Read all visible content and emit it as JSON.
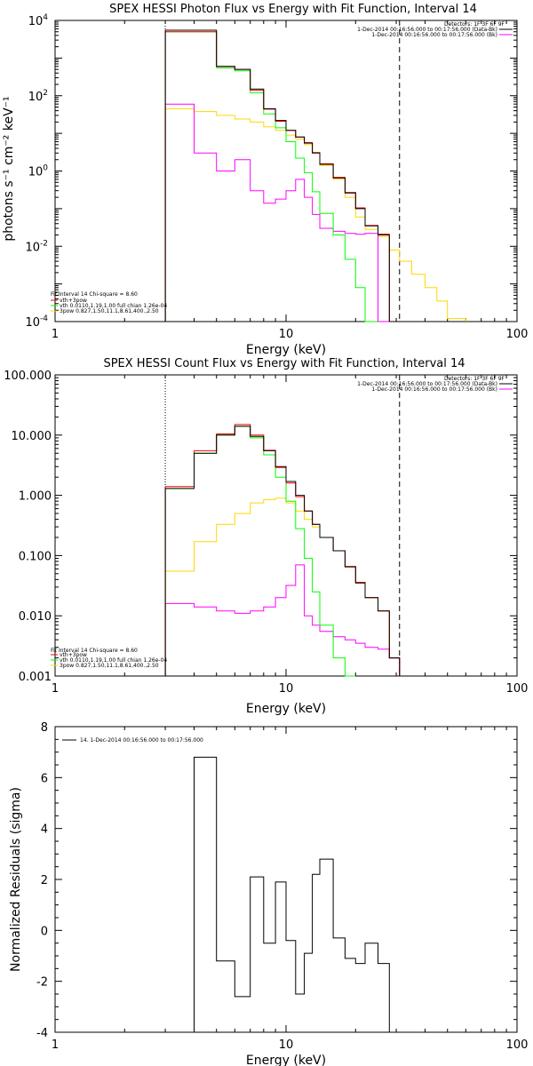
{
  "chart_data": [
    {
      "type": "line",
      "title": "SPEX HESSI Photon Flux vs Energy with Fit Function, Interval 14",
      "xlabel": "Energy (keV)",
      "ylabel": "photons s⁻¹ cm⁻² keV⁻¹",
      "xscale": "log",
      "yscale": "log",
      "xlim": [
        1,
        100
      ],
      "ylim": [
        0.0001,
        10000
      ],
      "x_ticks": [
        "1",
        "10",
        "100"
      ],
      "y_ticks": [
        {
          "b": "10",
          "e": "-4"
        },
        {
          "b": "10",
          "e": "-2"
        },
        {
          "b": "10",
          "e": "0"
        },
        {
          "b": "10",
          "e": "2"
        },
        {
          "b": "10",
          "e": "4"
        }
      ],
      "legend_header": "Detectors: 1F 3F 6F 9F",
      "legend_top": [
        {
          "label": "1-Dec-2014 00:16:56.000 to 00:17:56.000 (Data-Bk)",
          "color": "#000000"
        },
        {
          "label": "1-Dec-2014 00:16:56.000 to 00:17:56.000 (Bk)",
          "color": "#ff00ff"
        }
      ],
      "legend_bottom_header": "Fit Interval 14   Chi-square = 8.60",
      "legend_bottom": [
        {
          "label": "vth+3pow",
          "color": "#ff0000"
        },
        {
          "label": "vth 0.0110,1.19,1.00  full chian 1.26e-04",
          "color": "#00ff00"
        },
        {
          "label": "3pow 0.827,1.50,11.1,8.61,400.,2.50",
          "color": "#ffd700"
        }
      ],
      "edges": [
        3,
        4,
        5,
        6,
        7,
        8,
        9,
        10,
        11,
        12,
        13,
        14,
        16,
        18,
        20,
        22,
        25,
        28,
        31,
        35,
        40,
        45,
        50,
        60
      ],
      "series": [
        {
          "name": "Data-Bk",
          "color": "#000000",
          "values": [
            5500,
            5500,
            600,
            500,
            150,
            45,
            22,
            12,
            8,
            5.5,
            3,
            1.5,
            0.65,
            0.26,
            0.1,
            0.035,
            0.02
          ]
        },
        {
          "name": "vth+3pow",
          "color": "#ff0000",
          "values": [
            5000,
            5000,
            600,
            500,
            140,
            44,
            21,
            12,
            8,
            5.7,
            3.1,
            1.55,
            0.68,
            0.27,
            0.105,
            0.036,
            0.021
          ]
        },
        {
          "name": "vth",
          "color": "#00ff00",
          "values": [
            5000,
            5000,
            550,
            460,
            120,
            33,
            14,
            6,
            2.2,
            0.9,
            0.28,
            0.075,
            0.02,
            0.0045,
            0.0008,
            0.0001
          ]
        },
        {
          "name": "3pow",
          "color": "#ffd700",
          "values": [
            45,
            38,
            30,
            24,
            20,
            15,
            12,
            9,
            7,
            5,
            3.1,
            1.4,
            0.6,
            0.2,
            0.06,
            0.028,
            0.018,
            0.008,
            0.004,
            0.0018,
            0.0008,
            0.00035,
            0.00012
          ]
        },
        {
          "name": "Bk",
          "color": "#ff00ff",
          "values": [
            60,
            3,
            1,
            2,
            0.3,
            0.14,
            0.18,
            0.3,
            0.6,
            0.2,
            0.07,
            0.03,
            0.025,
            0.022,
            0.021,
            0.022,
            0.0001
          ]
        }
      ],
      "vlines": [
        {
          "x": 3,
          "style": "dotted"
        },
        {
          "x": 31,
          "style": "dashed"
        }
      ]
    },
    {
      "type": "line",
      "title": "SPEX HESSI Count Flux vs Energy with Fit Function, Interval 14",
      "xlabel": "Energy (keV)",
      "ylabel": "",
      "xscale": "log",
      "yscale": "log",
      "xlim": [
        1,
        100
      ],
      "ylim": [
        0.001,
        100
      ],
      "x_ticks": [
        "1",
        "10",
        "100"
      ],
      "y_ticks": [
        "0.001",
        "0.010",
        "0.100",
        "1.000",
        "10.000",
        "100.000"
      ],
      "legend_header": "Detectors: 1F 3F 6F 9F",
      "legend_top": [
        {
          "label": "1-Dec-2014 00:16:56.000 to 00:17:56.000 (Data-Bk)",
          "color": "#000000"
        },
        {
          "label": "1-Dec-2014 00:16:56.000 to 00:17:56.000 (Bk)",
          "color": "#ff00ff"
        }
      ],
      "legend_bottom_header": "Fit Interval 14   Chi-square = 8.60",
      "legend_bottom": [
        {
          "label": "vth+3pow",
          "color": "#ff0000"
        },
        {
          "label": "vth 0.0110,1.19,1.00  full chian 1.26e-04",
          "color": "#00ff00"
        },
        {
          "label": "3pow 0.827,1.50,11.1,8.61,400.,2.50",
          "color": "#ffd700"
        }
      ],
      "edges": [
        3,
        4,
        5,
        6,
        7,
        8,
        9,
        10,
        11,
        12,
        13,
        14,
        16,
        18,
        20,
        22,
        25,
        28,
        31
      ],
      "series": [
        {
          "name": "Data-Bk",
          "color": "#000000",
          "values": [
            1.3,
            5.0,
            10.0,
            14.0,
            9.5,
            5.5,
            3.0,
            1.7,
            1.0,
            0.55,
            0.33,
            0.2,
            0.12,
            0.065,
            0.035,
            0.02,
            0.012,
            0.002
          ]
        },
        {
          "name": "vth+3pow",
          "color": "#ff0000",
          "values": [
            1.4,
            5.5,
            10.5,
            15.0,
            10.0,
            5.6,
            2.9,
            1.6,
            0.95,
            0.55,
            0.33,
            0.2,
            0.12,
            0.066,
            0.036,
            0.02,
            0.012,
            0.002
          ]
        },
        {
          "name": "vth",
          "color": "#00ff00",
          "values": [
            1.3,
            5.0,
            10.0,
            14.0,
            9.0,
            4.7,
            2.0,
            0.8,
            0.28,
            0.09,
            0.025,
            0.007,
            0.002,
            0.001
          ]
        },
        {
          "name": "3pow",
          "color": "#ffd700",
          "values": [
            0.055,
            0.17,
            0.33,
            0.5,
            0.75,
            0.85,
            0.9,
            0.75,
            0.55,
            0.4,
            0.3,
            0.2,
            0.12,
            0.065,
            0.035,
            0.02,
            0.012,
            0.002
          ]
        },
        {
          "name": "Bk",
          "color": "#ff00ff",
          "values": [
            0.016,
            0.014,
            0.012,
            0.011,
            0.012,
            0.014,
            0.02,
            0.032,
            0.07,
            0.01,
            0.007,
            0.0055,
            0.0045,
            0.004,
            0.0035,
            0.003,
            0.0028,
            0.002
          ]
        }
      ],
      "vlines": [
        {
          "x": 3,
          "style": "dotted"
        },
        {
          "x": 31,
          "style": "dashed"
        }
      ]
    },
    {
      "type": "line",
      "title": "",
      "xlabel": "Energy (keV)",
      "ylabel": "Normalized Residuals (sigma)",
      "xscale": "log",
      "yscale": "linear",
      "xlim": [
        1,
        100
      ],
      "ylim": [
        -4,
        8
      ],
      "x_ticks": [
        "1",
        "10",
        "100"
      ],
      "y_ticks": [
        "-4",
        "-2",
        "0",
        "2",
        "4",
        "6",
        "8"
      ],
      "legend_top": [
        {
          "label": "14.  1-Dec-2014 00:16:56.000 to 00:17:56.000",
          "color": "#000000"
        }
      ],
      "edges": [
        3,
        4,
        5,
        6,
        7,
        8,
        9,
        10,
        11,
        12,
        13,
        14,
        16,
        18,
        20,
        22,
        25,
        28,
        31
      ],
      "series": [
        {
          "name": "",
          "color": "#000000",
          "values": [
            -4.0,
            6.8,
            -1.2,
            -2.6,
            2.1,
            -0.5,
            1.9,
            -0.4,
            -2.5,
            -0.9,
            2.2,
            2.8,
            -0.3,
            -1.1,
            -1.3,
            -0.5,
            -1.3
          ]
        }
      ],
      "baseline": -4
    }
  ]
}
